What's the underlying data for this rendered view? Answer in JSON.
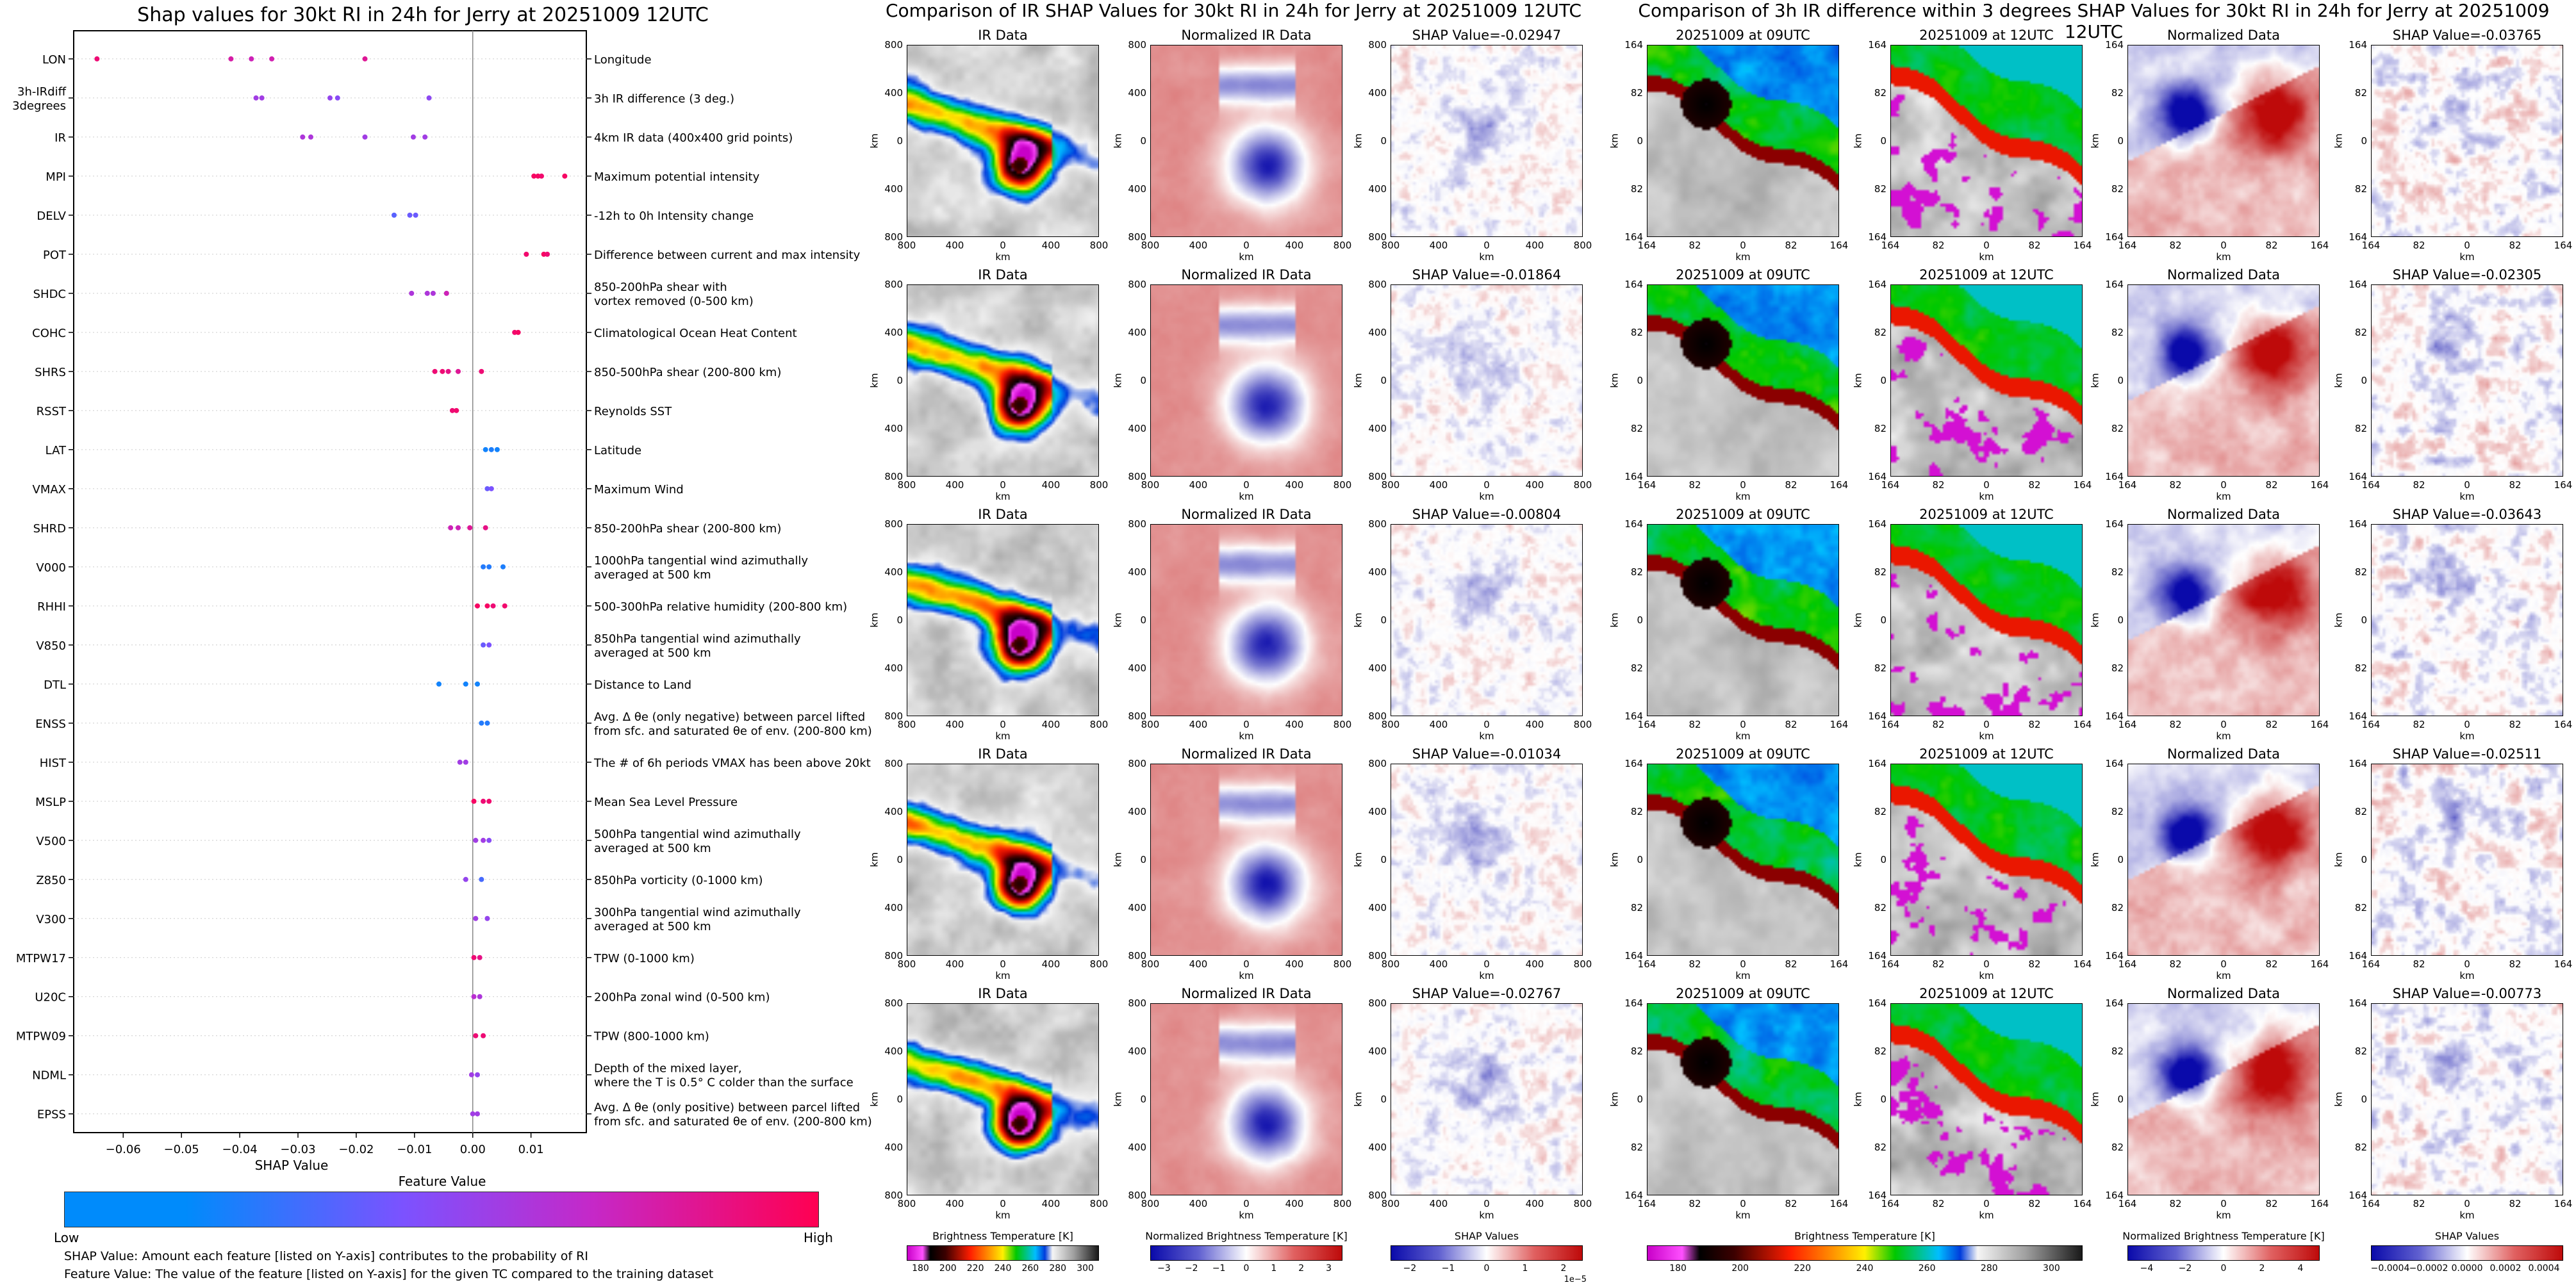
{
  "shap_summary": {
    "chart_data": {
      "type": "scatter",
      "title": "Shap values for 30kt RI in 24h for Jerry at 20251009 12UTC",
      "xlabel": "SHAP Value",
      "xticks": [
        "−0.06",
        "−0.05",
        "−0.04",
        "−0.03",
        "−0.02",
        "−0.01",
        "0.00",
        "0.01"
      ],
      "xtick_values": [
        -0.06,
        -0.05,
        -0.04,
        -0.03,
        -0.02,
        -0.01,
        0.0,
        0.01
      ],
      "xlim": [
        -0.0685,
        0.0195
      ],
      "grid": false,
      "colorbar": {
        "title": "Feature Value",
        "low": "Low",
        "high": "High",
        "colors": [
          "#008bfb",
          "#7c52ff",
          "#c528c8",
          "#ff0052"
        ]
      },
      "features": [
        {
          "name": "LON",
          "desc": [
            "Longitude"
          ],
          "points": [
            [
              -0.0645,
              0.9
            ],
            [
              -0.0415,
              0.75
            ],
            [
              -0.038,
              0.7
            ],
            [
              -0.0345,
              0.72
            ],
            [
              -0.0185,
              0.8
            ]
          ]
        },
        {
          "name": "3h-IRdiff\n3degrees",
          "desc": [
            "3h IR difference (3 deg.)"
          ],
          "points": [
            [
              -0.0372,
              0.5
            ],
            [
              -0.0362,
              0.5
            ],
            [
              -0.0245,
              0.45
            ],
            [
              -0.0232,
              0.4
            ],
            [
              -0.0075,
              0.42
            ]
          ]
        },
        {
          "name": "IR",
          "desc": [
            "4km IR data (400x400 grid points)"
          ],
          "points": [
            [
              -0.0292,
              0.55
            ],
            [
              -0.0278,
              0.55
            ],
            [
              -0.0185,
              0.5
            ],
            [
              -0.0102,
              0.5
            ],
            [
              -0.0082,
              0.5
            ]
          ]
        },
        {
          "name": "MPI",
          "desc": [
            "Maximum potential intensity"
          ],
          "points": [
            [
              0.0105,
              0.95
            ],
            [
              0.0112,
              0.95
            ],
            [
              0.0118,
              0.92
            ],
            [
              0.0158,
              0.95
            ]
          ]
        },
        {
          "name": "DELV",
          "desc": [
            "-12h to 0h Intensity change"
          ],
          "points": [
            [
              -0.0135,
              0.25
            ],
            [
              -0.0108,
              0.3
            ],
            [
              -0.0098,
              0.3
            ]
          ]
        },
        {
          "name": "POT",
          "desc": [
            "Difference between current and max intensity"
          ],
          "points": [
            [
              0.0092,
              0.92
            ],
            [
              0.0122,
              0.95
            ],
            [
              0.0128,
              0.9
            ]
          ]
        },
        {
          "name": "SHDC",
          "desc": [
            "850-200hPa shear with",
            "vortex removed (0-500 km)"
          ],
          "points": [
            [
              -0.0105,
              0.55
            ],
            [
              -0.0078,
              0.55
            ],
            [
              -0.0068,
              0.55
            ],
            [
              -0.0045,
              0.7
            ]
          ]
        },
        {
          "name": "COHC",
          "desc": [
            "Climatological Ocean Heat Content"
          ],
          "points": [
            [
              0.0072,
              0.92
            ],
            [
              0.0078,
              0.95
            ]
          ]
        },
        {
          "name": "SHRS",
          "desc": [
            "850-500hPa shear (200-800 km)"
          ],
          "points": [
            [
              -0.0065,
              0.9
            ],
            [
              -0.0052,
              0.9
            ],
            [
              -0.0042,
              0.85
            ],
            [
              -0.0025,
              0.8
            ],
            [
              0.0015,
              0.9
            ]
          ]
        },
        {
          "name": "RSST",
          "desc": [
            "Reynolds SST"
          ],
          "points": [
            [
              -0.0035,
              0.9
            ],
            [
              -0.0028,
              0.92
            ]
          ]
        },
        {
          "name": "LAT",
          "desc": [
            "Latitude"
          ],
          "points": [
            [
              0.0022,
              0.05
            ],
            [
              0.0032,
              0.08
            ],
            [
              0.0042,
              0.05
            ]
          ]
        },
        {
          "name": "VMAX",
          "desc": [
            "Maximum Wind"
          ],
          "points": [
            [
              0.0025,
              0.3
            ],
            [
              0.0032,
              0.35
            ]
          ]
        },
        {
          "name": "SHRD",
          "desc": [
            "850-200hPa shear (200-800 km)"
          ],
          "points": [
            [
              -0.0038,
              0.7
            ],
            [
              -0.0025,
              0.7
            ],
            [
              -0.0005,
              0.8
            ],
            [
              0.0022,
              0.85
            ]
          ]
        },
        {
          "name": "V000",
          "desc": [
            "1000hPa tangential wind azimuthally",
            "averaged at 500 km"
          ],
          "points": [
            [
              0.0018,
              0.1
            ],
            [
              0.0028,
              0.1
            ],
            [
              0.0052,
              0.08
            ]
          ]
        },
        {
          "name": "RHHI",
          "desc": [
            "500-300hPa relative humidity (200-800 km)"
          ],
          "points": [
            [
              0.0008,
              0.95
            ],
            [
              0.0025,
              0.95
            ],
            [
              0.0035,
              0.9
            ],
            [
              0.0055,
              0.92
            ]
          ]
        },
        {
          "name": "V850",
          "desc": [
            "850hPa tangential wind azimuthally",
            "averaged at 500 km"
          ],
          "points": [
            [
              0.0018,
              0.3
            ],
            [
              0.0028,
              0.35
            ]
          ]
        },
        {
          "name": "DTL",
          "desc": [
            "Distance to Land"
          ],
          "points": [
            [
              -0.0058,
              0.05
            ],
            [
              -0.0012,
              0.05
            ],
            [
              0.0008,
              0.05
            ]
          ]
        },
        {
          "name": "ENSS",
          "desc": [
            "Avg. Δ θe (only negative) between parcel lifted",
            "from sfc. and saturated θe of env. (200-800 km)"
          ],
          "points": [
            [
              0.0015,
              0.1
            ],
            [
              0.0025,
              0.1
            ]
          ]
        },
        {
          "name": "HIST",
          "desc": [
            "The # of 6h periods VMAX has been above 20kt"
          ],
          "points": [
            [
              -0.0022,
              0.5
            ],
            [
              -0.0012,
              0.5
            ]
          ]
        },
        {
          "name": "MSLP",
          "desc": [
            "Mean Sea Level Pressure"
          ],
          "points": [
            [
              0.0002,
              0.95
            ],
            [
              0.0018,
              0.9
            ],
            [
              0.0028,
              0.92
            ]
          ]
        },
        {
          "name": "V500",
          "desc": [
            "500hPa tangential wind azimuthally",
            "averaged at 500 km"
          ],
          "points": [
            [
              0.0005,
              0.5
            ],
            [
              0.0018,
              0.5
            ],
            [
              0.0028,
              0.4
            ]
          ]
        },
        {
          "name": "Z850",
          "desc": [
            "850hPa vorticity (0-1000 km)"
          ],
          "points": [
            [
              -0.0012,
              0.45
            ],
            [
              0.0015,
              0.2
            ]
          ]
        },
        {
          "name": "V300",
          "desc": [
            "300hPa tangential wind azimuthally",
            "averaged at 500 km"
          ],
          "points": [
            [
              0.0005,
              0.5
            ],
            [
              0.0025,
              0.45
            ]
          ]
        },
        {
          "name": "MTPW17",
          "desc": [
            "TPW (0-1000 km)"
          ],
          "points": [
            [
              0.0002,
              0.9
            ],
            [
              0.0012,
              0.85
            ]
          ]
        },
        {
          "name": "U20C",
          "desc": [
            "200hPa zonal wind (0-500 km)"
          ],
          "points": [
            [
              0.0002,
              0.6
            ],
            [
              0.0012,
              0.55
            ]
          ]
        },
        {
          "name": "MTPW09",
          "desc": [
            "TPW (800-1000 km)"
          ],
          "points": [
            [
              0.0005,
              0.9
            ],
            [
              0.0018,
              0.9
            ]
          ]
        },
        {
          "name": "NDML",
          "desc": [
            "Depth of the mixed layer,",
            "where the T is 0.5° C colder than the surface"
          ],
          "points": [
            [
              -0.0002,
              0.5
            ],
            [
              0.0008,
              0.45
            ]
          ]
        },
        {
          "name": "EPSS",
          "desc": [
            "Avg. Δ θe (only positive) between parcel lifted",
            "from sfc. and saturated θe of env. (200-800 km)"
          ],
          "points": [
            [
              0.0,
              0.5
            ],
            [
              0.0008,
              0.5
            ]
          ]
        }
      ]
    },
    "footnote_1": "SHAP Value: Amount each feature [listed on Y-axis] contributes to the probability of RI",
    "footnote_2": "Feature Value: The value of the feature [listed on Y-axis] for the given TC compared to the training dataset"
  },
  "ir_group": {
    "suptitle": "Comparison of IR SHAP Values for 30kt RI in 24h for Jerry at 20251009 12UTC",
    "columns": [
      "IR Data",
      "Normalized IR Data"
    ],
    "shap_titles": [
      "SHAP Value=-0.02947",
      "SHAP Value=-0.01864",
      "SHAP Value=-0.00804",
      "SHAP Value=-0.01034",
      "SHAP Value=-0.02767"
    ],
    "axis_label": "km",
    "ticks": [
      "800",
      "400",
      "0",
      "400",
      "800"
    ],
    "colorbars": [
      {
        "label": "Brightness Temperature [K]",
        "ticks": [
          "180",
          "200",
          "220",
          "240",
          "260",
          "280",
          "300"
        ]
      },
      {
        "label": "Normalized Brightness Temperature [K]",
        "ticks": [
          "−3",
          "−2",
          "−1",
          "0",
          "1",
          "2",
          "3"
        ]
      },
      {
        "label": "SHAP Values",
        "ticks": [
          "−2",
          "−1",
          "0",
          "1",
          "2"
        ],
        "exponent": "1e−5"
      }
    ]
  },
  "diff_group": {
    "suptitle": "Comparison of 3h IR difference within 3 degrees SHAP Values for 30kt RI in 24h for Jerry at 20251009 12UTC",
    "columns": [
      "20251009 at 09UTC",
      "20251009 at 12UTC",
      "Normalized Data"
    ],
    "shap_titles": [
      "SHAP Value=-0.03765",
      "SHAP Value=-0.02305",
      "SHAP Value=-0.03643",
      "SHAP Value=-0.02511",
      "SHAP Value=-0.00773"
    ],
    "axis_label": "km",
    "ticks": [
      "164",
      "82",
      "0",
      "82",
      "164"
    ],
    "colorbars": [
      {
        "label": "Brightness Temperature [K]",
        "ticks": [
          "180",
          "200",
          "220",
          "240",
          "260",
          "280",
          "300"
        ]
      },
      {
        "label": "Normalized Brightness Temperature [K]",
        "ticks": [
          "−4",
          "−2",
          "0",
          "2",
          "4"
        ]
      },
      {
        "label": "SHAP Values",
        "ticks": [
          "−0.0004",
          "−0.0002",
          "0.0000",
          "0.0002",
          "0.0004"
        ]
      }
    ]
  },
  "colors": {
    "feature_low": "#008bfb",
    "feature_high": "#ff0052",
    "shap_negative": "#2233cc",
    "shap_positive": "#cc1f1f",
    "norm_negative": "#0c0ca8",
    "norm_positive": "#f06a6a"
  }
}
